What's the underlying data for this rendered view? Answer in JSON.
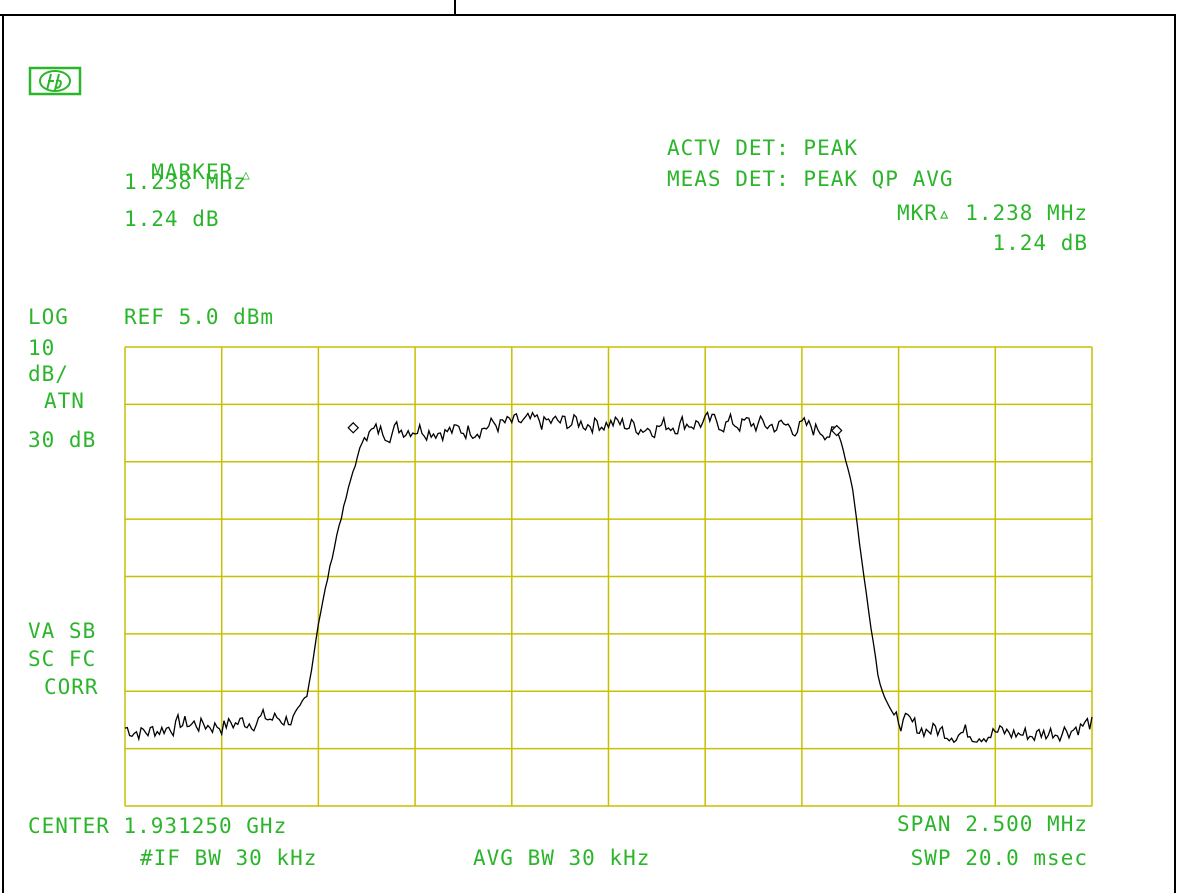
{
  "colors": {
    "text": "#2bb52b",
    "grid": "#c8c000",
    "trace": "#000000",
    "background": "#ffffff"
  },
  "logo": {
    "icon": "hp-logo-icon",
    "text": "hp"
  },
  "marker": {
    "title": "MARKER",
    "freq": "1.238 MHz",
    "amp": "1.24 dB"
  },
  "detector": {
    "active": "ACTV DET: PEAK",
    "measure": "MEAS DET: PEAK QP AVG",
    "mkr_freq": "MKR▵ 1.238 MHz",
    "mkr_amp": "1.24 dB"
  },
  "scale": {
    "log": "LOG",
    "ref": "REF 5.0 dBm",
    "div_value": "10",
    "div_unit": "dB/",
    "atn_label": "ATN",
    "atn_value": "30 dB"
  },
  "status": {
    "line1": "VA SB",
    "line2": "SC FC",
    "line3": "CORR"
  },
  "footer": {
    "center": "CENTER 1.931250 GHz",
    "span": "SPAN 2.500 MHz",
    "if_bw": "#IF BW 30 kHz",
    "avg_bw": "AVG BW 30 kHz",
    "swp": "SWP 20.0 msec"
  },
  "chart_data": {
    "type": "line",
    "title": "",
    "xlabel": "",
    "ylabel": "",
    "x_center_ghz": 1.93125,
    "x_span_mhz": 2.5,
    "xlim_mhz": [
      -1.25,
      1.25
    ],
    "ylim_dbm": [
      -95,
      5
    ],
    "y_scale": "log 10 dB/div",
    "grid": true,
    "series": [
      {
        "x_offset_mhz": [
          -1.25,
          -1.2,
          -1.1,
          -1.0,
          -0.9,
          -0.85,
          -0.8,
          -0.78,
          -0.75,
          -0.7,
          -0.66,
          -0.63,
          -0.6,
          -0.5,
          -0.4,
          -0.3,
          -0.2,
          -0.1,
          0.0,
          0.1,
          0.2,
          0.3,
          0.4,
          0.5,
          0.56,
          0.6,
          0.63,
          0.66,
          0.7,
          0.74,
          0.8,
          0.9,
          1.0,
          1.1,
          1.2,
          1.25
        ],
        "amplitude_dbm": [
          -78,
          -79,
          -77,
          -77.5,
          -76,
          -76,
          -76,
          -72,
          -55,
          -35,
          -22,
          -14,
          -13.5,
          -12.5,
          -13.5,
          -12,
          -11.5,
          -11.5,
          -11.5,
          -12.5,
          -11.5,
          -11.5,
          -12,
          -12.5,
          -13,
          -15,
          -25,
          -45,
          -68,
          -76,
          -78,
          -79,
          -79,
          -79.5,
          -78,
          -77
        ]
      }
    ]
  }
}
